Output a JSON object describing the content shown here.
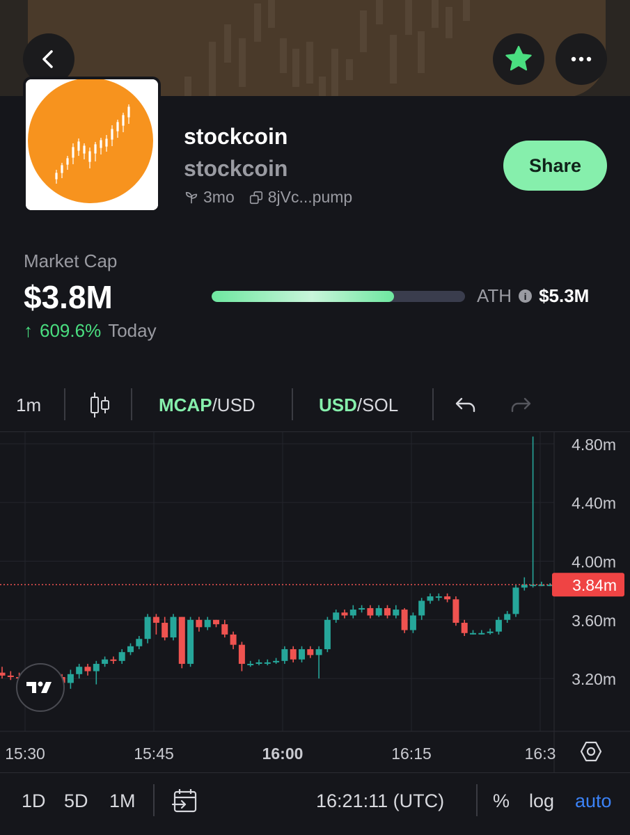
{
  "header": {
    "back_icon": "chevron-left-icon",
    "favorite_icon": "star-icon",
    "more_icon": "more-horizontal-icon",
    "favorite_color": "#4ade80"
  },
  "token": {
    "name": "stockcoin",
    "symbol": "stockcoin",
    "age": "3mo",
    "address": "8jVc...pump",
    "share_label": "Share",
    "logo_color": "#f7931e"
  },
  "market": {
    "label": "Market Cap",
    "value": "$3.8M",
    "change_arrow": "↑",
    "change_pct": "609.6%",
    "change_period": "Today",
    "ath_label": "ATH",
    "ath_value": "$5.3M",
    "ath_progress": 0.72
  },
  "toolbar": {
    "interval": "1m",
    "mcap_primary": "MCAP",
    "mcap_secondary": "/USD",
    "usd_primary": "USD",
    "usd_secondary": "/SOL"
  },
  "chart_data": {
    "type": "candlestick",
    "x_ticks": [
      "15:30",
      "15:45",
      "16:00",
      "16:15",
      "16:3"
    ],
    "y_ticks": [
      "4.80m",
      "4.40m",
      "4.00m",
      "3.60m",
      "3.20m"
    ],
    "y_tick_values": [
      4.8,
      4.4,
      4.0,
      3.6,
      3.2
    ],
    "current_price_label": "3.84m",
    "current_price": 3.84,
    "ylim": [
      2.84,
      4.88
    ],
    "up_color": "#26a69a",
    "down_color": "#ef5350",
    "candles": [
      [
        3.24,
        3.22,
        3.28,
        3.2
      ],
      [
        3.22,
        3.21,
        3.25,
        3.19
      ],
      [
        3.21,
        3.2,
        3.24,
        3.18
      ],
      [
        3.2,
        3.21,
        3.24,
        3.18
      ],
      [
        3.21,
        3.2,
        3.23,
        3.18
      ],
      [
        3.2,
        3.22,
        3.25,
        3.19
      ],
      [
        3.22,
        3.21,
        3.24,
        3.19
      ],
      [
        3.21,
        3.17,
        3.23,
        3.1
      ],
      [
        3.17,
        3.23,
        3.26,
        3.13
      ],
      [
        3.23,
        3.28,
        3.3,
        3.2
      ],
      [
        3.28,
        3.25,
        3.3,
        3.22
      ],
      [
        3.25,
        3.3,
        3.32,
        3.16
      ],
      [
        3.3,
        3.33,
        3.35,
        3.28
      ],
      [
        3.33,
        3.32,
        3.35,
        3.3
      ],
      [
        3.32,
        3.38,
        3.4,
        3.3
      ],
      [
        3.38,
        3.42,
        3.44,
        3.36
      ],
      [
        3.42,
        3.47,
        3.49,
        3.4
      ],
      [
        3.47,
        3.62,
        3.64,
        3.44
      ],
      [
        3.62,
        3.58,
        3.64,
        3.5
      ],
      [
        3.58,
        3.48,
        3.62,
        3.46
      ],
      [
        3.48,
        3.62,
        3.64,
        3.46
      ],
      [
        3.62,
        3.3,
        3.62,
        3.27
      ],
      [
        3.3,
        3.6,
        3.62,
        3.28
      ],
      [
        3.6,
        3.55,
        3.62,
        3.52
      ],
      [
        3.55,
        3.6,
        3.62,
        3.53
      ],
      [
        3.6,
        3.57,
        3.6,
        3.55
      ],
      [
        3.57,
        3.5,
        3.6,
        3.48
      ],
      [
        3.5,
        3.43,
        3.52,
        3.4
      ],
      [
        3.43,
        3.3,
        3.45,
        3.25
      ],
      [
        3.3,
        3.3,
        3.32,
        3.28
      ],
      [
        3.3,
        3.31,
        3.33,
        3.29
      ],
      [
        3.31,
        3.31,
        3.33,
        3.29
      ],
      [
        3.31,
        3.32,
        3.34,
        3.3
      ],
      [
        3.32,
        3.4,
        3.42,
        3.3
      ],
      [
        3.4,
        3.33,
        3.42,
        3.31
      ],
      [
        3.33,
        3.4,
        3.42,
        3.31
      ],
      [
        3.4,
        3.36,
        3.42,
        3.34
      ],
      [
        3.36,
        3.4,
        3.42,
        3.2
      ],
      [
        3.4,
        3.6,
        3.62,
        3.38
      ],
      [
        3.6,
        3.65,
        3.67,
        3.58
      ],
      [
        3.65,
        3.63,
        3.67,
        3.61
      ],
      [
        3.63,
        3.67,
        3.7,
        3.61
      ],
      [
        3.67,
        3.68,
        3.7,
        3.65
      ],
      [
        3.68,
        3.63,
        3.7,
        3.61
      ],
      [
        3.63,
        3.68,
        3.7,
        3.62
      ],
      [
        3.68,
        3.63,
        3.7,
        3.61
      ],
      [
        3.63,
        3.67,
        3.7,
        3.61
      ],
      [
        3.67,
        3.53,
        3.68,
        3.51
      ],
      [
        3.53,
        3.63,
        3.65,
        3.51
      ],
      [
        3.63,
        3.73,
        3.75,
        3.6
      ],
      [
        3.73,
        3.76,
        3.78,
        3.71
      ],
      [
        3.76,
        3.76,
        3.78,
        3.73
      ],
      [
        3.76,
        3.74,
        3.78,
        3.72
      ],
      [
        3.74,
        3.58,
        3.76,
        3.56
      ],
      [
        3.58,
        3.51,
        3.6,
        3.49
      ],
      [
        3.51,
        3.51,
        3.53,
        3.5
      ],
      [
        3.51,
        3.51,
        3.53,
        3.5
      ],
      [
        3.51,
        3.52,
        3.54,
        3.5
      ],
      [
        3.52,
        3.6,
        3.62,
        3.5
      ],
      [
        3.6,
        3.64,
        3.66,
        3.58
      ],
      [
        3.64,
        3.82,
        3.84,
        3.62
      ],
      [
        3.82,
        3.84,
        3.89,
        3.8
      ],
      [
        3.84,
        3.84,
        4.85,
        3.82
      ],
      [
        3.84,
        3.84,
        3.86,
        3.83
      ],
      [
        3.84,
        3.84,
        3.85,
        3.83
      ]
    ]
  },
  "bottom": {
    "range_1d": "1D",
    "range_5d": "5D",
    "range_1m": "1M",
    "time": "16:21:11 (UTC)",
    "percent": "%",
    "log": "log",
    "auto": "auto"
  }
}
